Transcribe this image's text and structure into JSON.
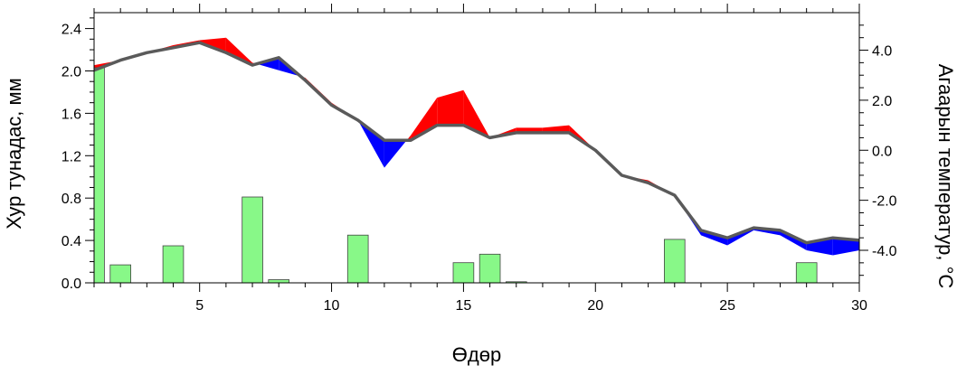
{
  "chart_data": {
    "type": "bar+line",
    "title": "",
    "xlabel": "Өдөр",
    "ylabel_left": "Хур тунадас, мм",
    "ylabel_right": "Агаарын температур, °C",
    "xlim": [
      1,
      30
    ],
    "ylim_left": [
      0,
      2.55
    ],
    "ylim_right": [
      -5.3,
      5.5
    ],
    "x_ticks": [
      5,
      10,
      15,
      20,
      25,
      30
    ],
    "y_left_ticks": [
      "0.0",
      "0.4",
      "0.8",
      "1.2",
      "1.6",
      "2.0",
      "2.4"
    ],
    "y_right_ticks": [
      "-4.0",
      "-2.0",
      "0.0",
      "2.0",
      "4.0"
    ],
    "grid": false,
    "colors": {
      "bar_fill": "#88f888",
      "bar_stroke": "#444444",
      "smooth_line": "#5a5a5a",
      "warm_fill": "#ff0000",
      "cold_fill": "#0000ff"
    },
    "series": [
      {
        "name": "precipitation",
        "kind": "bar",
        "x": [
          1,
          2,
          4,
          7,
          8,
          11,
          15,
          16,
          17,
          23,
          28
        ],
        "values": [
          2.03,
          0.17,
          0.35,
          0.81,
          0.03,
          0.45,
          0.19,
          0.27,
          0.01,
          0.41,
          0.19
        ]
      },
      {
        "name": "temperature",
        "kind": "line",
        "x": [
          1,
          2,
          3,
          4,
          5,
          6,
          7,
          8,
          9,
          10,
          11,
          12,
          13,
          14,
          15,
          16,
          17,
          18,
          19,
          20,
          21,
          22,
          23,
          24,
          25,
          26,
          27,
          28,
          29,
          30
        ],
        "values": [
          3.4,
          3.6,
          3.9,
          4.2,
          4.4,
          4.5,
          3.5,
          3.2,
          2.9,
          1.9,
          1.2,
          -0.7,
          0.6,
          2.1,
          2.4,
          0.5,
          0.9,
          0.9,
          1.0,
          0.0,
          -1.0,
          -1.2,
          -1.8,
          -3.4,
          -3.8,
          -3.2,
          -3.4,
          -4.0,
          -4.2,
          -4.0
        ]
      },
      {
        "name": "temperature-smoothed",
        "kind": "line",
        "x": [
          1,
          2,
          3,
          4,
          5,
          6,
          7,
          8,
          9,
          10,
          11,
          12,
          13,
          14,
          15,
          16,
          17,
          18,
          19,
          20,
          21,
          22,
          23,
          24,
          25,
          26,
          27,
          28,
          29,
          30
        ],
        "values": [
          3.2,
          3.6,
          3.9,
          4.1,
          4.3,
          3.9,
          3.4,
          3.7,
          2.8,
          1.8,
          1.2,
          0.4,
          0.4,
          1.0,
          1.0,
          0.5,
          0.7,
          0.7,
          0.7,
          0.0,
          -1.0,
          -1.3,
          -1.8,
          -3.2,
          -3.5,
          -3.1,
          -3.2,
          -3.7,
          -3.5,
          -3.6
        ]
      }
    ]
  }
}
